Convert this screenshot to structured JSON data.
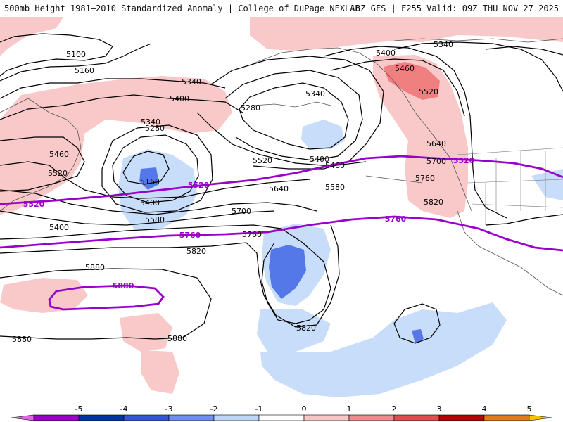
{
  "header": {
    "title": "500mb Height 1981–2010 Standardized Anomaly | College of DuPage NEXLAB",
    "run_info": "18Z GFS | F255 Valid: 09Z THU NOV 27 2025"
  },
  "colors": {
    "contour": "#000000",
    "highlight_contour": "#9900cc",
    "coastline": "#4d4d4d",
    "border": "#777777"
  },
  "legend": {
    "ticks": [
      "-5",
      "-4",
      "-3",
      "-2",
      "-1",
      "0",
      "1",
      "2",
      "3",
      "4",
      "5"
    ],
    "colors": [
      "#e066e6",
      "#9900cc",
      "#0033aa",
      "#3355dd",
      "#6f8ff0",
      "#bcd6fa",
      "#ffffff",
      "#f9c6c6",
      "#f08b8b",
      "#e74c4c",
      "#b80000",
      "#e87814",
      "#f7c000"
    ]
  },
  "contour_labels": [
    "5100",
    "5160",
    "5340",
    "5400",
    "5280",
    "5340",
    "5400",
    "5340",
    "5280",
    "5460",
    "5520",
    "5160",
    "5400",
    "5580",
    "5520",
    "5400",
    "5460",
    "5580",
    "5640",
    "5700",
    "5760",
    "5820",
    "5640",
    "5700",
    "5760",
    "5820",
    "5880",
    "5880",
    "5820",
    "5880",
    "5340",
    "5400",
    "5460",
    "5520"
  ],
  "highlight_labels": [
    "5520",
    "5520",
    "5520",
    "5760",
    "5760",
    "5880"
  ]
}
